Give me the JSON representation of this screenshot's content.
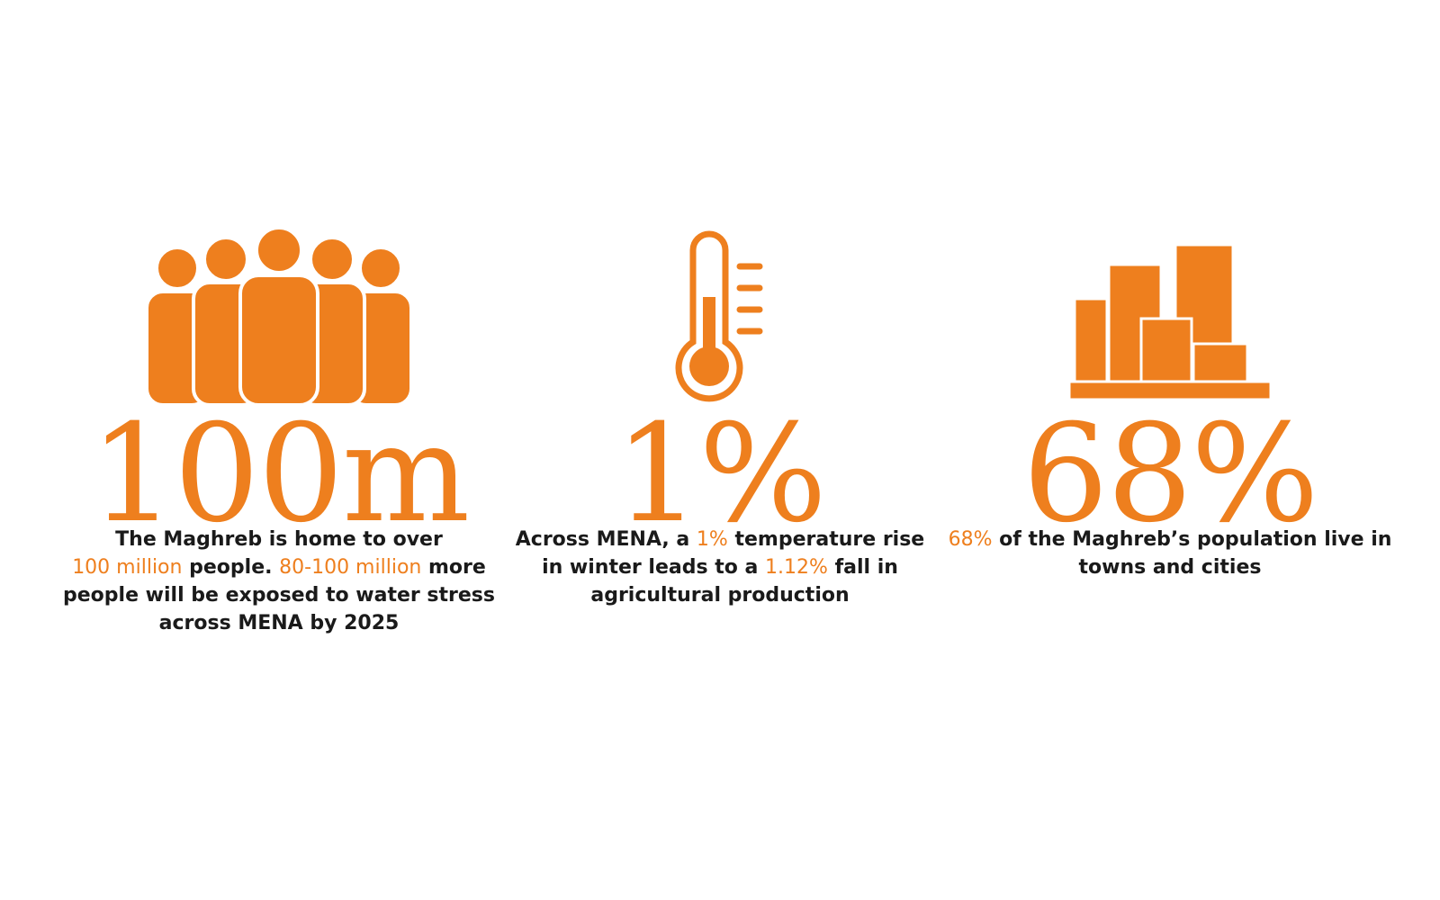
{
  "colors": {
    "accent": "#ee7f1e",
    "text": "#1a1a1a",
    "background": "#ffffff"
  },
  "stats": [
    {
      "icon": "people-group-icon",
      "value": "100m",
      "description": {
        "p1": "The Maghreb is home to over",
        "h1": "100 million",
        "p2": " people. ",
        "h2": "80-100 million",
        "p3": " more people will be exposed to water stress across MENA by 2025"
      }
    },
    {
      "icon": "thermometer-icon",
      "value": "1%",
      "description": {
        "p1": "Across MENA, a ",
        "h1": "1%",
        "p2": " temperature rise in winter leads to a ",
        "h2": "1.12%",
        "p3": " fall in agricultural production"
      }
    },
    {
      "icon": "city-buildings-icon",
      "value": "68%",
      "description": {
        "h1": "68%",
        "p1": " of the Maghreb’s population live in towns and cities"
      }
    }
  ]
}
